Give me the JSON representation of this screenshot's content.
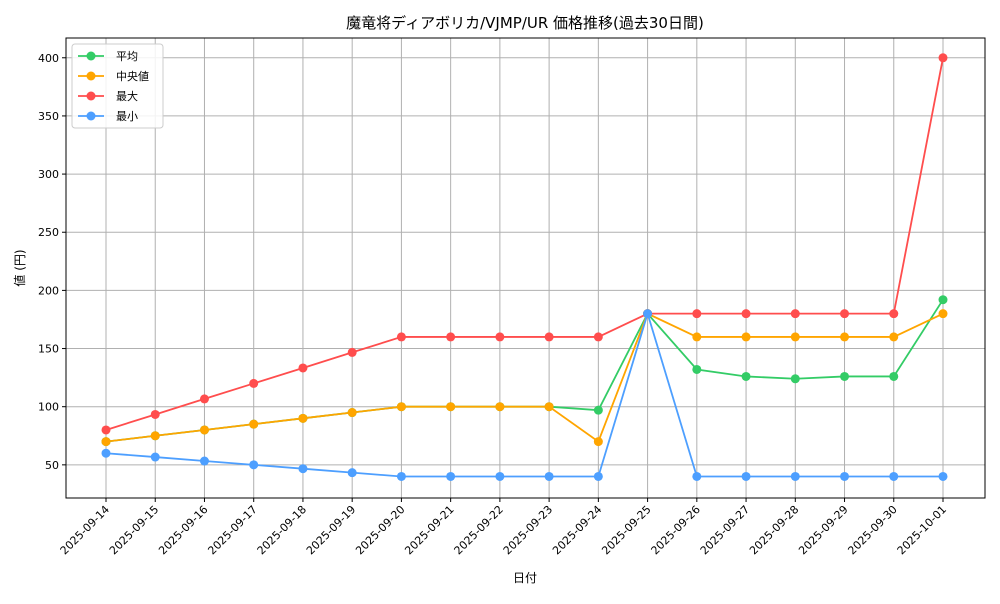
{
  "chart_data": {
    "type": "line",
    "title": "魔竜将ディアボリカ/VJMP/UR 価格推移(過去30日間)",
    "xlabel": "日付",
    "ylabel": "値 (円)",
    "ylim": [
      21.5,
      417
    ],
    "yticks": [
      50,
      100,
      150,
      200,
      250,
      300,
      350,
      400
    ],
    "grid": true,
    "legend_position": "top-left",
    "x": [
      "2025-09-14",
      "2025-09-15",
      "2025-09-16",
      "2025-09-17",
      "2025-09-18",
      "2025-09-19",
      "2025-09-20",
      "2025-09-21",
      "2025-09-22",
      "2025-09-23",
      "2025-09-24",
      "2025-09-25",
      "2025-09-26",
      "2025-09-27",
      "2025-09-28",
      "2025-09-29",
      "2025-09-30",
      "2025-10-01"
    ],
    "series": [
      {
        "name": "平均",
        "color": "#33cc66",
        "values": [
          70,
          75,
          80,
          85,
          90,
          95,
          100,
          100,
          100,
          100,
          97,
          180,
          132,
          126,
          124,
          126,
          126,
          192
        ]
      },
      {
        "name": "中央値",
        "color": "#ffa500",
        "values": [
          70,
          75,
          80,
          85,
          90,
          95,
          100,
          100,
          100,
          100,
          70,
          180,
          160,
          160,
          160,
          160,
          160,
          180
        ]
      },
      {
        "name": "最大",
        "color": "#ff4d4d",
        "values": [
          80,
          93.3,
          106.7,
          120,
          133.3,
          146.7,
          160,
          160,
          160,
          160,
          160,
          180,
          180,
          180,
          180,
          180,
          180,
          400
        ]
      },
      {
        "name": "最小",
        "color": "#4d9fff",
        "values": [
          60,
          56.7,
          53.3,
          50,
          46.7,
          43.3,
          40,
          40,
          40,
          40,
          40,
          180,
          40,
          40,
          40,
          40,
          40,
          40
        ]
      }
    ]
  }
}
